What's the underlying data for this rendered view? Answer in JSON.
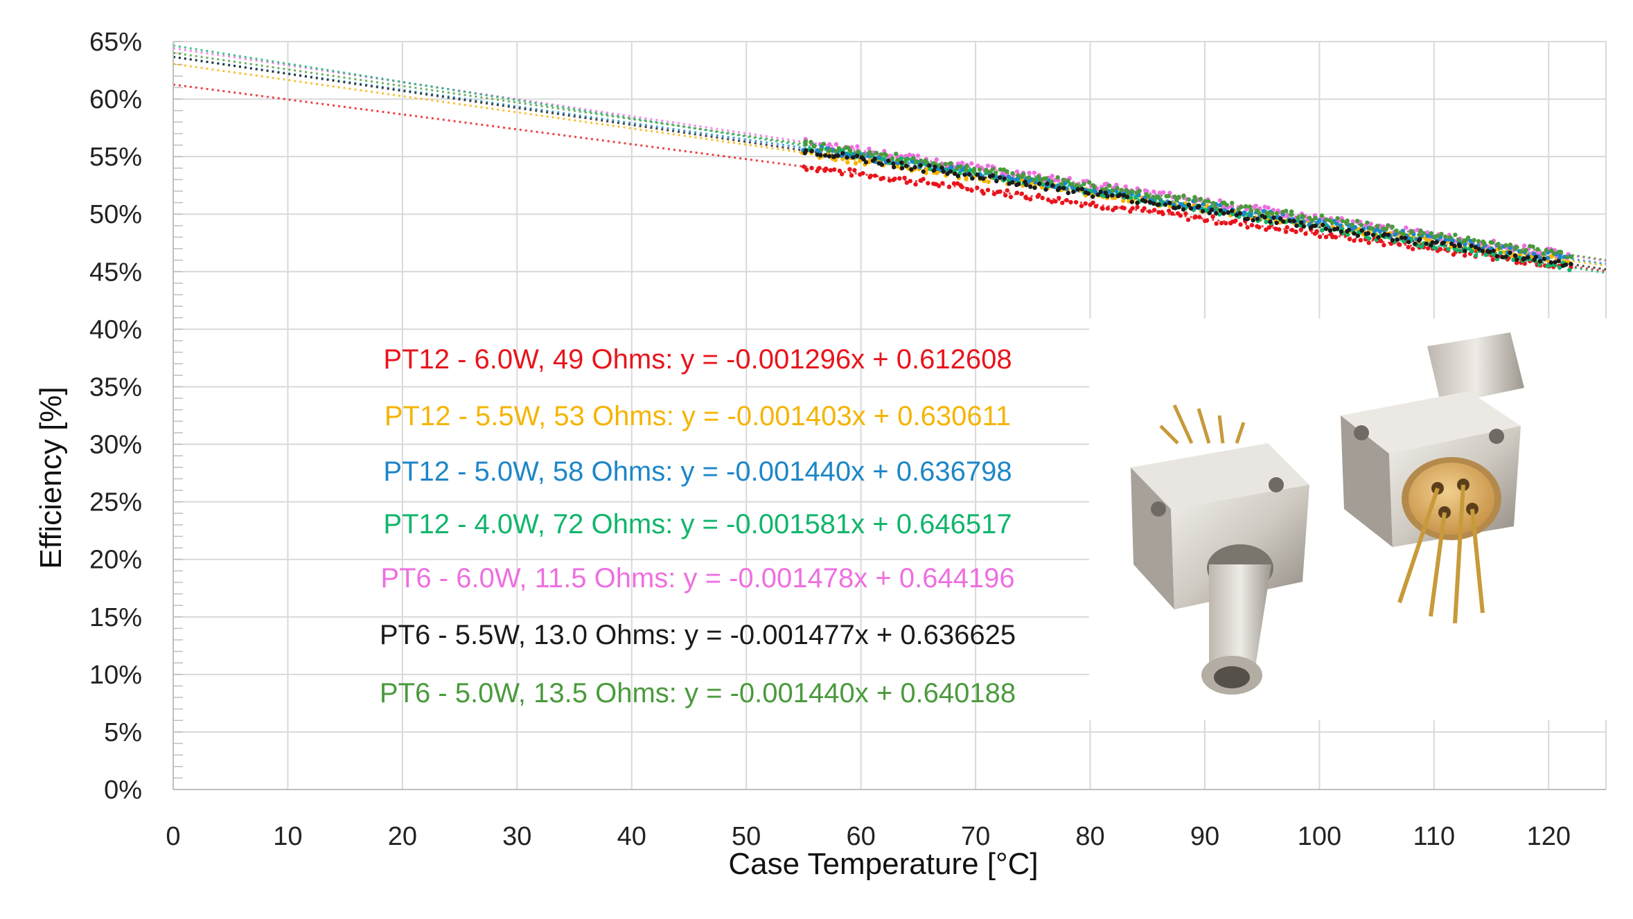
{
  "chart_data": {
    "type": "scatter",
    "title": "",
    "xlabel": "Case Temperature [°C]",
    "ylabel": "Efficiency [%]",
    "xlim": [
      0,
      125
    ],
    "ylim": [
      0,
      0.65
    ],
    "x_ticks": [
      "0",
      "10",
      "20",
      "30",
      "40",
      "50",
      "60",
      "70",
      "80",
      "90",
      "100",
      "110",
      "120"
    ],
    "x_tick_values": [
      0,
      10,
      20,
      30,
      40,
      50,
      60,
      70,
      80,
      90,
      100,
      110,
      120
    ],
    "y_ticks": [
      "0%",
      "5%",
      "10%",
      "15%",
      "20%",
      "25%",
      "30%",
      "35%",
      "40%",
      "45%",
      "50%",
      "55%",
      "60%",
      "65%"
    ],
    "y_tick_values": [
      0,
      0.05,
      0.1,
      0.15,
      0.2,
      0.25,
      0.3,
      0.35,
      0.4,
      0.45,
      0.5,
      0.55,
      0.6,
      0.65
    ],
    "grid": true,
    "series": [
      {
        "label": "PT12 - 6.0W, 49 Ohms: y = -0.001296x + 0.612608",
        "slope": -0.001296,
        "intercept": 0.612608,
        "color": "#e8141b"
      },
      {
        "label": "PT12 - 5.5W, 53 Ohms: y = -0.001403x + 0.630611",
        "slope": -0.001403,
        "intercept": 0.630611,
        "color": "#f5b400"
      },
      {
        "label": "PT12 - 5.0W, 58 Ohms: y = -0.001440x + 0.636798",
        "slope": -0.00144,
        "intercept": 0.636798,
        "color": "#1c86c8"
      },
      {
        "label": "PT12 - 4.0W, 72 Ohms: y = -0.001581x + 0.646517",
        "slope": -0.001581,
        "intercept": 0.646517,
        "color": "#10b56b"
      },
      {
        "label": "PT6 - 6.0W, 11.5 Ohms: y = -0.001478x + 0.644196",
        "slope": -0.001478,
        "intercept": 0.644196,
        "color": "#ee6fe0"
      },
      {
        "label": "PT6 - 5.5W, 13.0 Ohms: y = -0.001477x + 0.636625",
        "slope": -0.001477,
        "intercept": 0.636625,
        "color": "#1a1a1a"
      },
      {
        "label": "PT6 - 5.0W, 13.5 Ohms: y = -0.001440x + 0.640188",
        "slope": -0.00144,
        "intercept": 0.640188,
        "color": "#4a9a3c"
      }
    ],
    "inset_image": "fiber-coupled-laser-diode-package-photo"
  }
}
